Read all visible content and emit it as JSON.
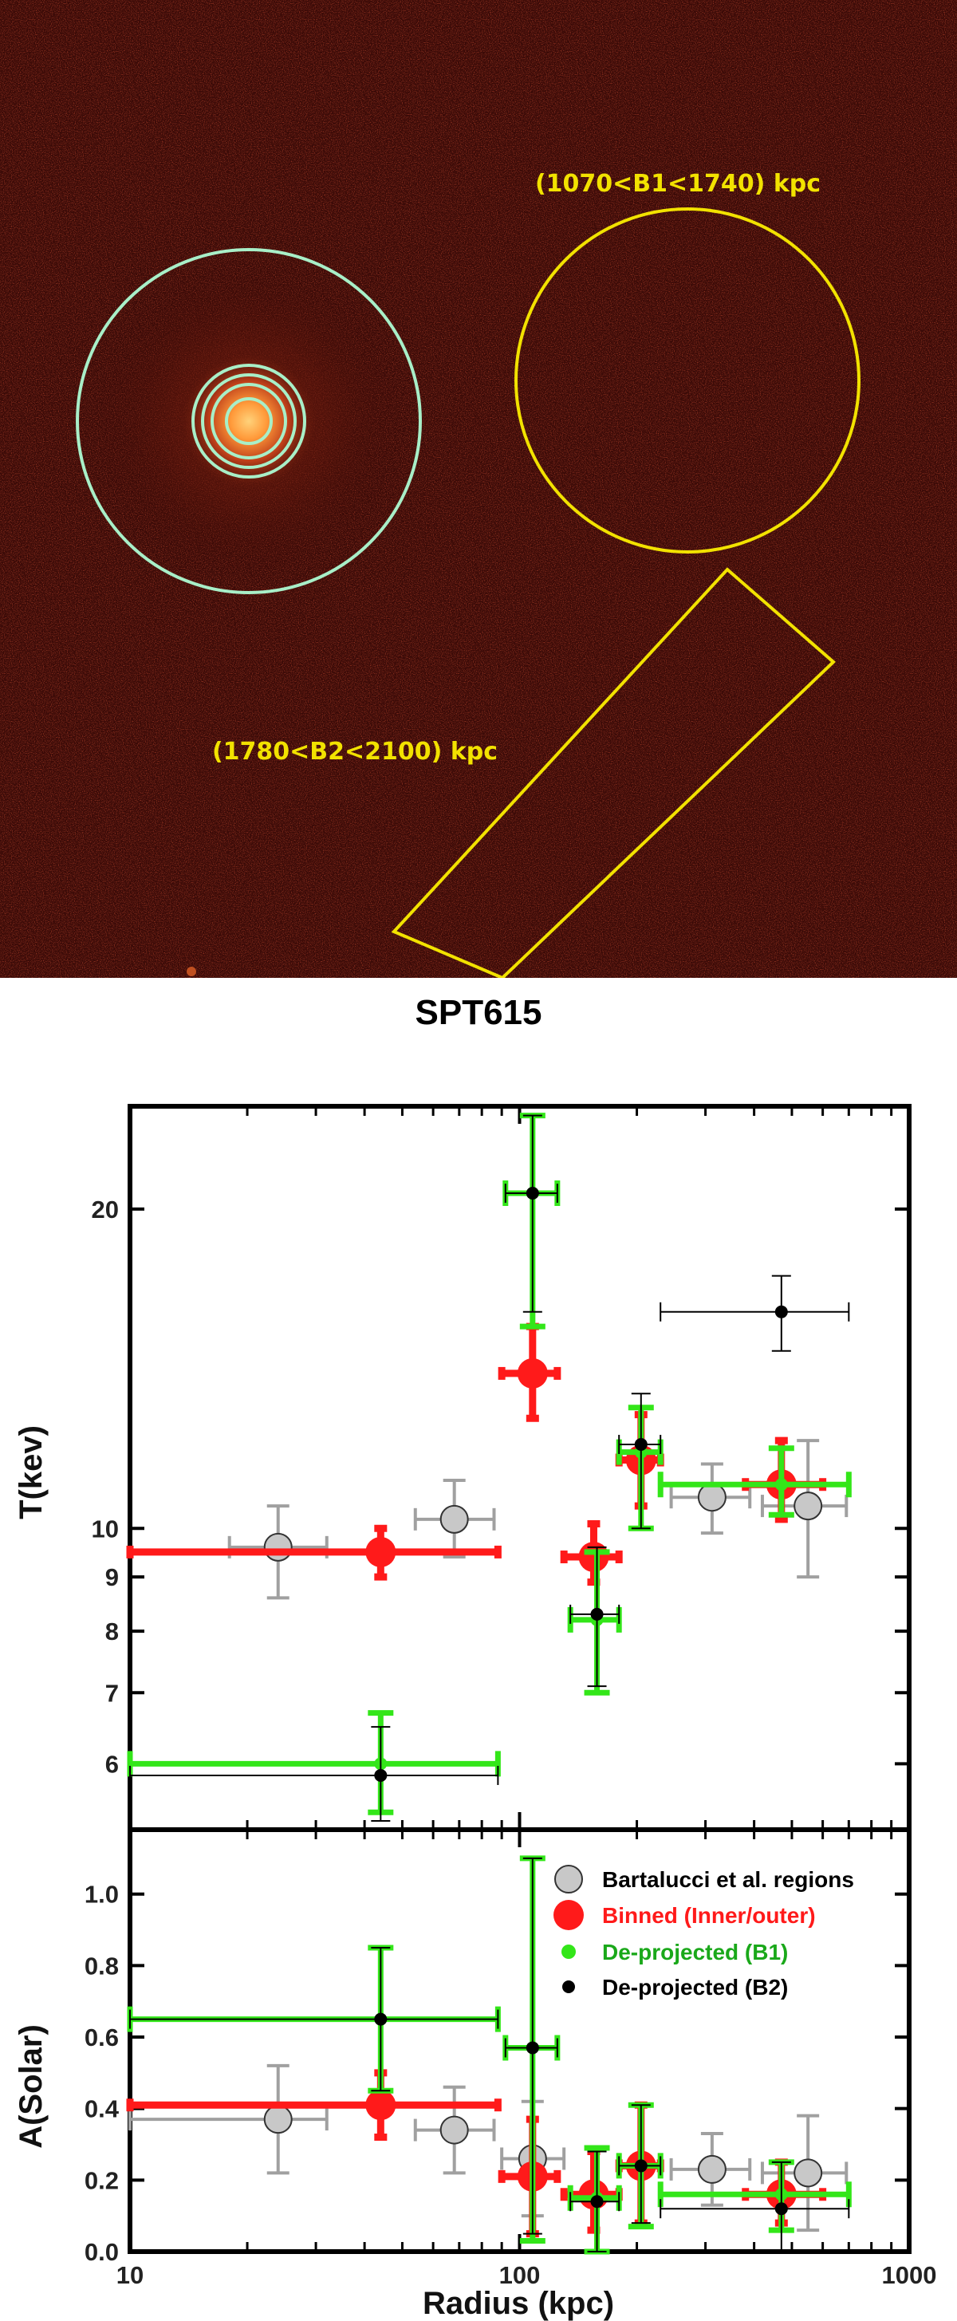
{
  "image": {
    "annotations": [
      {
        "text": "(1070<B1<1740) kpc"
      },
      {
        "text": "(1780<B2<2100) kpc"
      }
    ],
    "colors": {
      "background": "#3a0a07",
      "cluster_rings": "#a8efc8",
      "background_regions": "#f2e200"
    }
  },
  "chart_data": {
    "title": "SPT615",
    "type": "scatter",
    "xlabel": "Radius (kpc)",
    "x_scale": "log",
    "xlim": [
      10,
      1000
    ],
    "x_ticks": [
      "10",
      "100",
      "1000"
    ],
    "panels": [
      {
        "id": "temperature",
        "ylabel": "T(kev)",
        "y_scale": "log",
        "ylim": [
          5.2,
          25
        ],
        "y_ticks": [
          "6",
          "7",
          "8",
          "9",
          "10",
          "20"
        ],
        "series": [
          {
            "name": "Bartalucci et al. regions",
            "color": "#c8c8c8",
            "err_color": "#a0a0a0",
            "points": [
              {
                "x": 24,
                "xlo": 18,
                "xhi": 32,
                "y": 9.6,
                "ylo": 8.6,
                "yhi": 10.5
              },
              {
                "x": 68,
                "xlo": 54,
                "xhi": 86,
                "y": 10.2,
                "ylo": 9.4,
                "yhi": 11.1
              },
              {
                "x": 312,
                "xlo": 245,
                "xhi": 390,
                "y": 10.7,
                "ylo": 9.9,
                "yhi": 11.5
              },
              {
                "x": 550,
                "xlo": 420,
                "xhi": 690,
                "y": 10.5,
                "ylo": 9.0,
                "yhi": 12.1
              }
            ]
          },
          {
            "name": "Binned (Inner/outer)",
            "color": "#ff1a1a",
            "points": [
              {
                "x": 44,
                "xlo": 10,
                "xhi": 88,
                "y": 9.5,
                "ylo": 9.0,
                "yhi": 10.0
              },
              {
                "x": 108,
                "xlo": 90,
                "xhi": 125,
                "y": 14.0,
                "ylo": 12.7,
                "yhi": 15.5
              },
              {
                "x": 155,
                "xlo": 130,
                "xhi": 180,
                "y": 9.4,
                "ylo": 8.9,
                "yhi": 10.1
              },
              {
                "x": 205,
                "xlo": 180,
                "xhi": 230,
                "y": 11.6,
                "ylo": 10.5,
                "yhi": 12.8
              },
              {
                "x": 470,
                "xlo": 380,
                "xhi": 600,
                "y": 11.0,
                "ylo": 10.2,
                "yhi": 12.1
              }
            ]
          },
          {
            "name": "De-projected (B1)",
            "color": "#33e619",
            "points": [
              {
                "x": 44,
                "xlo": 10,
                "xhi": 88,
                "y": 6.0,
                "ylo": 5.4,
                "yhi": 6.7
              },
              {
                "x": 108,
                "xlo": 92,
                "xhi": 125,
                "y": 20.7,
                "ylo": 15.5,
                "yhi": 24.5
              },
              {
                "x": 158,
                "xlo": 135,
                "xhi": 180,
                "y": 8.2,
                "ylo": 7.0,
                "yhi": 9.5
              },
              {
                "x": 205,
                "xlo": 180,
                "xhi": 230,
                "y": 11.8,
                "ylo": 10.0,
                "yhi": 13.0
              },
              {
                "x": 470,
                "xlo": 230,
                "xhi": 700,
                "y": 11.0,
                "ylo": 10.3,
                "yhi": 11.9
              }
            ]
          },
          {
            "name": "De-projected (B2)",
            "color": "#000000",
            "points": [
              {
                "x": 44,
                "xlo": 10,
                "xhi": 88,
                "y": 5.85,
                "ylo": 5.3,
                "yhi": 6.5
              },
              {
                "x": 108,
                "xlo": 92,
                "xhi": 125,
                "y": 20.7,
                "ylo": 16.0,
                "yhi": 24.5
              },
              {
                "x": 158,
                "xlo": 135,
                "xhi": 180,
                "y": 8.3,
                "ylo": 7.1,
                "yhi": 9.6
              },
              {
                "x": 205,
                "xlo": 180,
                "xhi": 230,
                "y": 12.0,
                "ylo": 10.0,
                "yhi": 13.4
              },
              {
                "x": 470,
                "xlo": 230,
                "xhi": 700,
                "y": 16.0,
                "ylo": 14.7,
                "yhi": 17.3
              }
            ]
          }
        ]
      },
      {
        "id": "abundance",
        "ylabel": "A(Solar)",
        "y_scale": "linear",
        "ylim": [
          0.0,
          1.18
        ],
        "y_ticks": [
          "0.0",
          "0.2",
          "0.4",
          "0.6",
          "0.8",
          "1.0"
        ],
        "series": [
          {
            "name": "Bartalucci et al. regions",
            "color": "#c8c8c8",
            "err_color": "#a0a0a0",
            "points": [
              {
                "x": 24,
                "xlo": 10,
                "xhi": 32,
                "y": 0.37,
                "ylo": 0.22,
                "yhi": 0.52
              },
              {
                "x": 68,
                "xlo": 54,
                "xhi": 86,
                "y": 0.34,
                "ylo": 0.22,
                "yhi": 0.46
              },
              {
                "x": 108,
                "xlo": 90,
                "xhi": 130,
                "y": 0.26,
                "ylo": 0.1,
                "yhi": 0.42
              },
              {
                "x": 312,
                "xlo": 245,
                "xhi": 390,
                "y": 0.23,
                "ylo": 0.13,
                "yhi": 0.33
              },
              {
                "x": 550,
                "xlo": 420,
                "xhi": 690,
                "y": 0.22,
                "ylo": 0.06,
                "yhi": 0.38
              }
            ]
          },
          {
            "name": "Binned (Inner/outer)",
            "color": "#ff1a1a",
            "points": [
              {
                "x": 44,
                "xlo": 10,
                "xhi": 88,
                "y": 0.41,
                "ylo": 0.32,
                "yhi": 0.5
              },
              {
                "x": 108,
                "xlo": 90,
                "xhi": 125,
                "y": 0.21,
                "ylo": 0.05,
                "yhi": 0.37
              },
              {
                "x": 155,
                "xlo": 130,
                "xhi": 180,
                "y": 0.16,
                "ylo": 0.06,
                "yhi": 0.28
              },
              {
                "x": 205,
                "xlo": 180,
                "xhi": 230,
                "y": 0.24,
                "ylo": 0.08,
                "yhi": 0.41
              },
              {
                "x": 470,
                "xlo": 380,
                "xhi": 600,
                "y": 0.16,
                "ylo": 0.08,
                "yhi": 0.25
              }
            ]
          },
          {
            "name": "De-projected (B1)",
            "color": "#33e619",
            "points": [
              {
                "x": 44,
                "xlo": 10,
                "xhi": 88,
                "y": 0.65,
                "ylo": 0.45,
                "yhi": 0.85
              },
              {
                "x": 108,
                "xlo": 92,
                "xhi": 125,
                "y": 0.57,
                "ylo": 0.03,
                "yhi": 1.1
              },
              {
                "x": 158,
                "xlo": 135,
                "xhi": 180,
                "y": 0.15,
                "ylo": 0.0,
                "yhi": 0.29
              },
              {
                "x": 205,
                "xlo": 180,
                "xhi": 230,
                "y": 0.24,
                "ylo": 0.07,
                "yhi": 0.41
              },
              {
                "x": 470,
                "xlo": 230,
                "xhi": 700,
                "y": 0.16,
                "ylo": 0.06,
                "yhi": 0.25
              }
            ]
          },
          {
            "name": "De-projected (B2)",
            "color": "#000000",
            "points": [
              {
                "x": 44,
                "xlo": 10,
                "xhi": 88,
                "y": 0.65,
                "ylo": 0.45,
                "yhi": 0.85
              },
              {
                "x": 108,
                "xlo": 92,
                "xhi": 125,
                "y": 0.57,
                "ylo": 0.05,
                "yhi": 1.1
              },
              {
                "x": 158,
                "xlo": 135,
                "xhi": 180,
                "y": 0.14,
                "ylo": 0.0,
                "yhi": 0.28
              },
              {
                "x": 205,
                "xlo": 180,
                "xhi": 230,
                "y": 0.24,
                "ylo": 0.08,
                "yhi": 0.41
              },
              {
                "x": 470,
                "xlo": 230,
                "xhi": 700,
                "y": 0.12,
                "ylo": 0.0,
                "yhi": 0.25
              }
            ]
          }
        ]
      }
    ],
    "legend": {
      "placement": "top-right of abundance panel",
      "entries": [
        {
          "label": "Bartalucci et al. regions",
          "color": "#c8c8c8",
          "text_color": "#000000"
        },
        {
          "label": "Binned (Inner/outer)",
          "color": "#ff1a1a",
          "text_color": "#ff1a1a"
        },
        {
          "label": "De-projected (B1)",
          "color": "#33e619",
          "text_color": "#1aa81a"
        },
        {
          "label": "De-projected (B2)",
          "color": "#000000",
          "text_color": "#000000"
        }
      ]
    }
  }
}
